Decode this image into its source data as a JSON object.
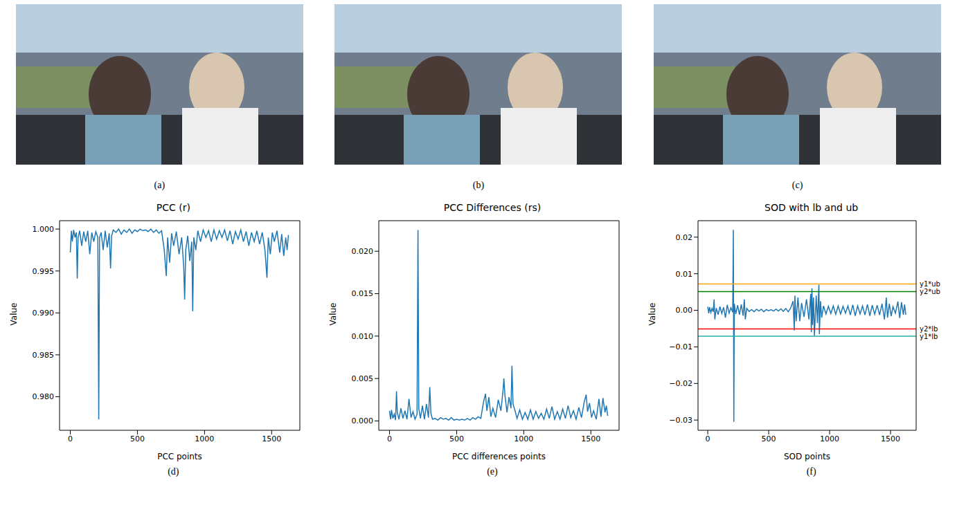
{
  "image_panels": [
    "(a)",
    "(b)",
    "(c)"
  ],
  "chart_data": [
    {
      "type": "line",
      "panel": "(d)",
      "title": "PCC (r)",
      "x_label": "PCC points",
      "y_label": "Value",
      "color": "#1f77b4",
      "xlim": [
        -80,
        1710
      ],
      "xticks": [
        0,
        500,
        1000,
        1500
      ],
      "ylim": [
        0.976,
        1.001
      ],
      "yticks": [
        {
          "value": 0.98,
          "label": "0.980"
        },
        {
          "value": 0.985,
          "label": "0.985"
        },
        {
          "value": 0.99,
          "label": "0.990"
        },
        {
          "value": 0.995,
          "label": "0.995"
        },
        {
          "value": 1.0,
          "label": "1.000"
        }
      ],
      "x": [
        0,
        8,
        15,
        25,
        35,
        45,
        52,
        58,
        70,
        85,
        100,
        115,
        130,
        145,
        160,
        175,
        190,
        205,
        212,
        218,
        230,
        245,
        260,
        275,
        290,
        300,
        308,
        320,
        340,
        360,
        380,
        400,
        420,
        440,
        460,
        480,
        500,
        520,
        540,
        560,
        580,
        600,
        620,
        640,
        660,
        680,
        700,
        715,
        725,
        740,
        755,
        770,
        790,
        810,
        830,
        845,
        852,
        860,
        875,
        890,
        905,
        912,
        920,
        935,
        950,
        970,
        990,
        1010,
        1030,
        1050,
        1070,
        1090,
        1110,
        1130,
        1150,
        1170,
        1190,
        1210,
        1230,
        1250,
        1270,
        1290,
        1310,
        1330,
        1350,
        1370,
        1390,
        1410,
        1430,
        1450,
        1465,
        1475,
        1490,
        1505,
        1520,
        1540,
        1560,
        1575,
        1590,
        1605,
        1615,
        1625
      ],
      "values": [
        0.9972,
        0.9998,
        0.9985,
        0.9999,
        0.999,
        0.9996,
        0.9941,
        0.999,
        0.9998,
        0.998,
        0.9997,
        0.9985,
        0.9998,
        0.997,
        0.9996,
        0.9985,
        0.9997,
        0.999,
        0.9773,
        0.999,
        0.9996,
        0.9975,
        0.9998,
        0.9978,
        0.9995,
        0.9953,
        0.9992,
        0.9999,
        0.9996,
        1.0,
        0.9994,
        0.9999,
        0.9996,
        1.0,
        0.9995,
        0.9999,
        0.9997,
        1.0,
        0.9998,
        0.9999,
        0.9997,
        1.0,
        0.9996,
        0.9999,
        0.9995,
        0.9998,
        0.9975,
        0.9944,
        0.999,
        0.996,
        0.9995,
        0.998,
        0.9997,
        0.997,
        0.999,
        0.9955,
        0.9916,
        0.9975,
        0.9992,
        0.9962,
        0.9985,
        0.9902,
        0.999,
        0.9975,
        0.9998,
        0.9985,
        0.9999,
        0.999,
        0.9998,
        0.9985,
        0.9999,
        0.9988,
        0.9998,
        0.999,
        0.9999,
        0.9986,
        0.9998,
        0.9982,
        0.9997,
        0.9988,
        0.9999,
        0.9985,
        0.9997,
        0.998,
        0.9996,
        0.9985,
        0.9998,
        0.9982,
        0.9996,
        0.9975,
        0.9942,
        0.999,
        0.997,
        0.9996,
        0.9985,
        0.9998,
        0.9972,
        0.9994,
        0.9968,
        0.999,
        0.9975,
        0.9993
      ]
    },
    {
      "type": "line",
      "panel": "(e)",
      "title": "PCC Differences (rs)",
      "x_label": "PCC differences points",
      "y_label": "Value",
      "color": "#1f77b4",
      "xlim": [
        -80,
        1710
      ],
      "xticks": [
        0,
        500,
        1000,
        1500
      ],
      "ylim": [
        -0.0011,
        0.0236
      ],
      "yticks": [
        {
          "value": 0,
          "label": "0.000"
        },
        {
          "value": 0.005,
          "label": "0.005"
        },
        {
          "value": 0.01,
          "label": "0.010"
        },
        {
          "value": 0.015,
          "label": "0.015"
        },
        {
          "value": 0.02,
          "label": "0.020"
        }
      ],
      "x": [
        0,
        8,
        15,
        25,
        35,
        45,
        52,
        58,
        70,
        85,
        100,
        115,
        130,
        145,
        160,
        175,
        190,
        205,
        212,
        218,
        230,
        245,
        260,
        275,
        290,
        300,
        308,
        320,
        340,
        360,
        380,
        400,
        420,
        440,
        460,
        480,
        500,
        520,
        540,
        560,
        580,
        600,
        620,
        640,
        660,
        680,
        700,
        715,
        725,
        740,
        755,
        770,
        790,
        810,
        830,
        845,
        852,
        860,
        875,
        890,
        905,
        912,
        920,
        935,
        950,
        970,
        990,
        1010,
        1030,
        1050,
        1070,
        1090,
        1110,
        1130,
        1150,
        1170,
        1190,
        1210,
        1230,
        1250,
        1270,
        1290,
        1310,
        1330,
        1350,
        1370,
        1390,
        1410,
        1430,
        1450,
        1465,
        1475,
        1490,
        1505,
        1520,
        1540,
        1560,
        1575,
        1590,
        1605,
        1615,
        1625
      ],
      "values": [
        0.0012,
        0.0002,
        0.0013,
        0.0003,
        0.0008,
        0.0001,
        0.0035,
        0.001,
        0.0002,
        0.0015,
        0.0003,
        0.0012,
        0.0002,
        0.0026,
        0.0004,
        0.0011,
        0.0002,
        0.0008,
        0.0225,
        0.0015,
        0.0003,
        0.0018,
        0.0002,
        0.002,
        0.0004,
        0.004,
        0.0009,
        0.0002,
        0.0003,
        0.0001,
        0.0004,
        0.0002,
        0.0003,
        0.0001,
        0.0004,
        0.0001,
        0.0002,
        0.0001,
        0.0002,
        0.0001,
        0.0003,
        0.0001,
        0.0004,
        0.0002,
        0.0005,
        0.0003,
        0.0022,
        0.0032,
        0.0012,
        0.0028,
        0.0005,
        0.0015,
        0.0004,
        0.0025,
        0.0012,
        0.0035,
        0.005,
        0.003,
        0.001,
        0.0028,
        0.0015,
        0.0065,
        0.002,
        0.0012,
        0.0003,
        0.0013,
        0.0002,
        0.001,
        0.0002,
        0.0013,
        0.0002,
        0.0011,
        0.0003,
        0.0009,
        0.0002,
        0.0014,
        0.0003,
        0.0017,
        0.0002,
        0.0011,
        0.0002,
        0.0014,
        0.0003,
        0.0018,
        0.0004,
        0.0012,
        0.0002,
        0.0016,
        0.0004,
        0.0022,
        0.0031,
        0.0011,
        0.0021,
        0.0004,
        0.0012,
        0.0002,
        0.0026,
        0.0005,
        0.0027,
        0.001,
        0.0018,
        0.0006
      ]
    },
    {
      "type": "line",
      "panel": "(f)",
      "title": "SOD with lb and ub",
      "x_label": "SOD points",
      "y_label": "Value",
      "color": "#1f77b4",
      "xlim": [
        -80,
        1710
      ],
      "xticks": [
        0,
        500,
        1000,
        1500
      ],
      "ylim": [
        -0.0328,
        0.0245
      ],
      "yticks": [
        {
          "value": -0.03,
          "label": "−0.03"
        },
        {
          "value": -0.02,
          "label": "−0.02"
        },
        {
          "value": -0.01,
          "label": "−0.01"
        },
        {
          "value": 0,
          "label": "0.00"
        },
        {
          "value": 0.01,
          "label": "0.01"
        },
        {
          "value": 0.02,
          "label": "0.02"
        }
      ],
      "lines": [
        {
          "label": "y1*ub",
          "value": 0.0072,
          "color": "#ffa500"
        },
        {
          "label": "y2*ub",
          "value": 0.0051,
          "color": "#008000"
        },
        {
          "label": "y2*lb",
          "value": -0.0051,
          "color": "#ff0000"
        },
        {
          "label": "y1*lb",
          "value": -0.0071,
          "color": "#20b2aa"
        }
      ],
      "x": [
        0,
        8,
        15,
        25,
        35,
        45,
        52,
        58,
        70,
        85,
        100,
        115,
        130,
        145,
        160,
        175,
        190,
        205,
        210,
        214,
        218,
        230,
        245,
        260,
        275,
        290,
        300,
        308,
        320,
        340,
        360,
        380,
        400,
        420,
        440,
        460,
        480,
        500,
        520,
        540,
        560,
        580,
        600,
        620,
        640,
        660,
        680,
        700,
        710,
        715,
        725,
        740,
        755,
        770,
        790,
        810,
        830,
        845,
        850,
        855,
        860,
        868,
        875,
        890,
        900,
        912,
        916,
        925,
        935,
        950,
        970,
        990,
        1010,
        1030,
        1050,
        1070,
        1090,
        1110,
        1130,
        1150,
        1170,
        1190,
        1210,
        1230,
        1250,
        1270,
        1290,
        1310,
        1330,
        1350,
        1370,
        1390,
        1410,
        1430,
        1450,
        1465,
        1475,
        1490,
        1505,
        1520,
        1540,
        1560,
        1575,
        1590,
        1605,
        1615,
        1625
      ],
      "values": [
        0.001,
        -0.0008,
        0.0009,
        -0.0006,
        0.0005,
        -0.0004,
        0.003,
        -0.0025,
        0.0006,
        -0.0012,
        0.001,
        -0.0009,
        0.0008,
        -0.002,
        0.0015,
        -0.0008,
        0.0007,
        -0.0005,
        0.022,
        -0.0305,
        0.0018,
        -0.001,
        0.0014,
        -0.0012,
        0.0016,
        -0.0015,
        0.003,
        -0.0025,
        0.0005,
        -0.0003,
        0.0002,
        -0.0004,
        0.0003,
        -0.0002,
        0.0003,
        -0.0004,
        0.0002,
        -0.0001,
        0.0002,
        -0.0002,
        0.0003,
        -0.0002,
        0.0004,
        -0.0003,
        0.0005,
        -0.0004,
        0.0006,
        0.0025,
        -0.0055,
        0.004,
        -0.003,
        0.0035,
        -0.003,
        0.002,
        -0.0018,
        0.003,
        -0.0025,
        0.0045,
        -0.006,
        0.006,
        -0.004,
        0.0035,
        -0.007,
        0.004,
        -0.0035,
        0.007,
        -0.0065,
        0.0025,
        -0.002,
        0.0012,
        -0.001,
        0.0011,
        -0.0009,
        0.0012,
        -0.0011,
        0.0012,
        -0.001,
        0.0011,
        -0.0008,
        0.0012,
        -0.0013,
        0.0015,
        -0.0015,
        0.0012,
        -0.001,
        0.0012,
        -0.0013,
        0.0016,
        -0.0015,
        0.0014,
        -0.0011,
        0.0014,
        -0.0013,
        0.0018,
        -0.0025,
        0.0035,
        -0.002,
        0.0018,
        -0.0016,
        0.001,
        -0.0008,
        0.0024,
        -0.0021,
        0.0022,
        -0.0012,
        0.0016,
        -0.0012
      ]
    }
  ]
}
